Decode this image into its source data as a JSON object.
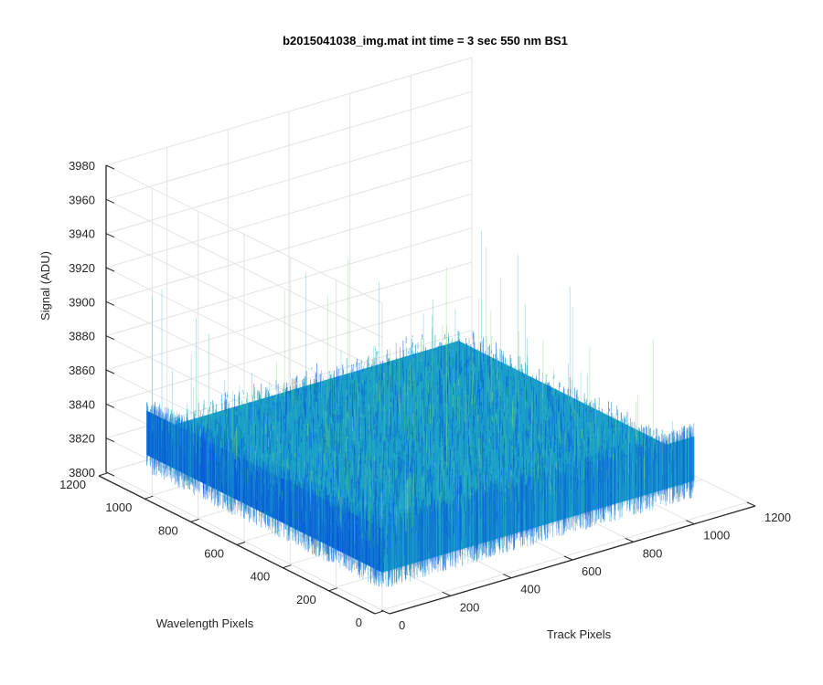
{
  "chart_data": {
    "type": "surface",
    "title": "b2015041038_img.mat int time = 3 sec  550 nm BS1",
    "xlabel": "Track Pixels",
    "ylabel": "Wavelength Pixels",
    "zlabel": "Signal (ADU)",
    "xlim": [
      0,
      1200
    ],
    "ylim": [
      0,
      1200
    ],
    "zlim": [
      3800,
      3980
    ],
    "x_extent": [
      0,
      1024
    ],
    "y_extent": [
      0,
      1024
    ],
    "x_ticks": [
      "0",
      "200",
      "400",
      "600",
      "800",
      "1000",
      "1200"
    ],
    "y_ticks": [
      "0",
      "200",
      "400",
      "600",
      "800",
      "1000",
      "1200"
    ],
    "z_ticks": [
      "3800",
      "3820",
      "3840",
      "3860",
      "3880",
      "3900",
      "3920",
      "3940",
      "3960",
      "3980"
    ],
    "mean_signal": 3835,
    "noise_band": [
      3822,
      3848
    ],
    "spike_max": 3930,
    "grid": true,
    "colormap": "parula",
    "colors": {
      "low": "#0b5fd8",
      "mid": "#1aa0c8",
      "high": "#38b8b0",
      "peak": "#7ccf7a"
    }
  }
}
